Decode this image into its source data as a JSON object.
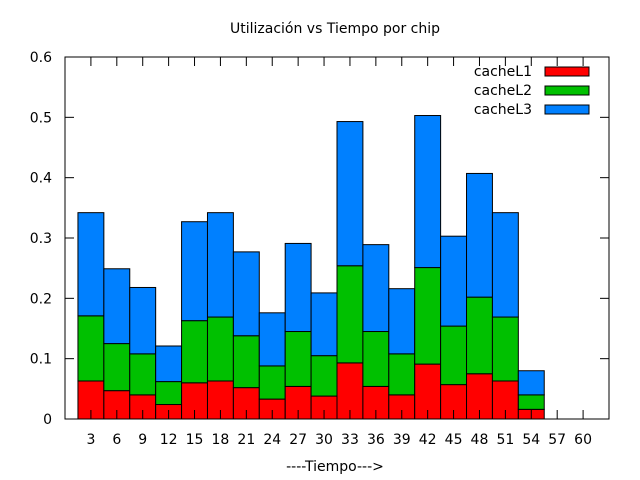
{
  "chart_data": {
    "type": "bar",
    "stacked": true,
    "title": "Utilización vs Tiempo por chip",
    "xlabel": "----Tiempo--->",
    "ylabel": "",
    "ylim": [
      0,
      0.6
    ],
    "yticks": [
      "0",
      "0.1",
      "0.2",
      "0.3",
      "0.4",
      "0.5",
      "0.6"
    ],
    "grid": false,
    "legend_position": "top-right",
    "categories": [
      "3",
      "6",
      "9",
      "12",
      "15",
      "18",
      "21",
      "24",
      "27",
      "30",
      "33",
      "36",
      "39",
      "42",
      "45",
      "48",
      "51",
      "54",
      "57",
      "60"
    ],
    "series": [
      {
        "name": "cacheL1",
        "color": "#ff0000",
        "values": [
          0.063,
          0.047,
          0.04,
          0.024,
          0.06,
          0.063,
          0.052,
          0.033,
          0.054,
          0.038,
          0.093,
          0.054,
          0.04,
          0.091,
          0.057,
          0.075,
          0.063,
          0.016,
          0,
          0
        ]
      },
      {
        "name": "cacheL2",
        "color": "#00c000",
        "values": [
          0.108,
          0.078,
          0.068,
          0.038,
          0.103,
          0.106,
          0.086,
          0.055,
          0.091,
          0.067,
          0.161,
          0.091,
          0.068,
          0.16,
          0.097,
          0.127,
          0.106,
          0.024,
          0,
          0
        ]
      },
      {
        "name": "cacheL3",
        "color": "#0080ff",
        "values": [
          0.171,
          0.124,
          0.11,
          0.059,
          0.164,
          0.173,
          0.139,
          0.088,
          0.146,
          0.104,
          0.239,
          0.144,
          0.108,
          0.252,
          0.149,
          0.205,
          0.173,
          0.04,
          0,
          0
        ]
      }
    ]
  }
}
